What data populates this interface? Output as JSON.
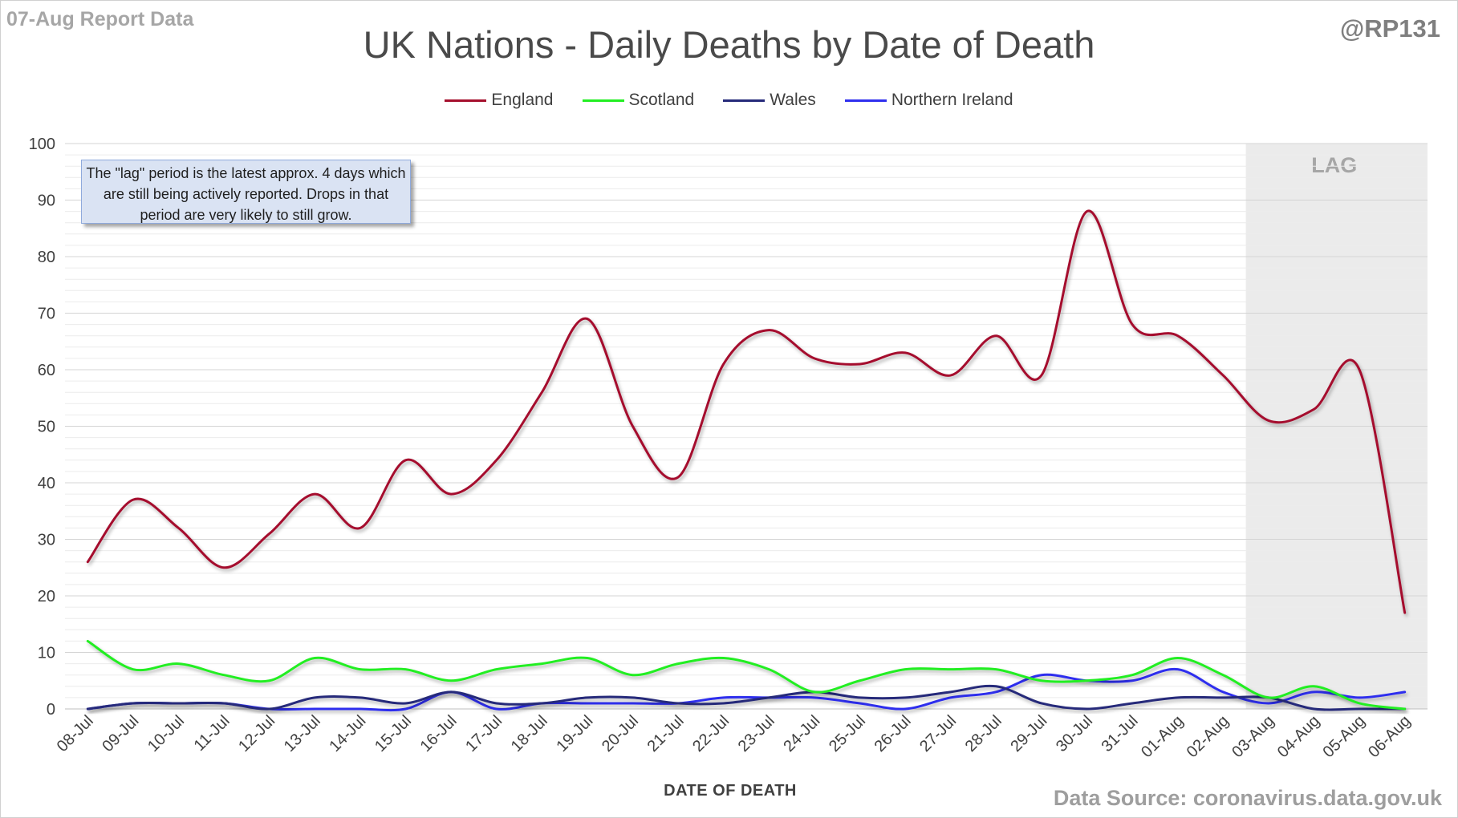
{
  "header": {
    "report_label": "07-Aug Report Data",
    "handle": "@RP131"
  },
  "footer": {
    "source": "Data Source: coronavirus.data.gov.uk"
  },
  "note": "The \"lag\" period is the latest approx. 4 days which are still being actively reported. Drops in that period are very likely to still grow.",
  "lag_label": "LAG",
  "chart_data": {
    "type": "line",
    "title": "UK Nations - Daily Deaths by Date of Death",
    "xlabel": "DATE OF DEATH",
    "ylabel": "",
    "ylim": [
      0,
      100
    ],
    "yticks": [
      0,
      10,
      20,
      30,
      40,
      50,
      60,
      70,
      80,
      90,
      100
    ],
    "grid": true,
    "smoothed": true,
    "legend_position": "top-center",
    "lag_period": {
      "from": "03-Aug",
      "to": "06-Aug"
    },
    "categories": [
      "08-Jul",
      "09-Jul",
      "10-Jul",
      "11-Jul",
      "12-Jul",
      "13-Jul",
      "14-Jul",
      "15-Jul",
      "16-Jul",
      "17-Jul",
      "18-Jul",
      "19-Jul",
      "20-Jul",
      "21-Jul",
      "22-Jul",
      "23-Jul",
      "24-Jul",
      "25-Jul",
      "26-Jul",
      "27-Jul",
      "28-Jul",
      "29-Jul",
      "30-Jul",
      "31-Jul",
      "01-Aug",
      "02-Aug",
      "03-Aug",
      "04-Aug",
      "05-Aug",
      "06-Aug"
    ],
    "series": [
      {
        "name": "England",
        "color": "#a50f2d",
        "values": [
          26,
          37,
          32,
          25,
          31,
          38,
          32,
          44,
          38,
          44,
          56,
          69,
          50,
          41,
          61,
          67,
          62,
          61,
          63,
          59,
          66,
          59,
          88,
          68,
          66,
          59,
          51,
          53,
          60,
          17
        ]
      },
      {
        "name": "Scotland",
        "color": "#22ee22",
        "values": [
          12,
          7,
          8,
          6,
          5,
          9,
          7,
          7,
          5,
          7,
          8,
          9,
          6,
          8,
          9,
          7,
          3,
          5,
          7,
          7,
          7,
          5,
          5,
          6,
          9,
          6,
          2,
          4,
          1,
          0
        ]
      },
      {
        "name": "Wales",
        "color": "#262a7a",
        "values": [
          0,
          1,
          1,
          1,
          0,
          2,
          2,
          1,
          3,
          1,
          1,
          2,
          2,
          1,
          1,
          2,
          3,
          2,
          2,
          3,
          4,
          1,
          0,
          1,
          2,
          2,
          2,
          0,
          0,
          0
        ]
      },
      {
        "name": "Northern Ireland",
        "color": "#2f2fee",
        "values": [
          0,
          1,
          1,
          1,
          0,
          0,
          0,
          0,
          3,
          0,
          1,
          1,
          1,
          1,
          2,
          2,
          2,
          1,
          0,
          2,
          3,
          6,
          5,
          5,
          7,
          3,
          1,
          3,
          2,
          3
        ]
      }
    ]
  }
}
